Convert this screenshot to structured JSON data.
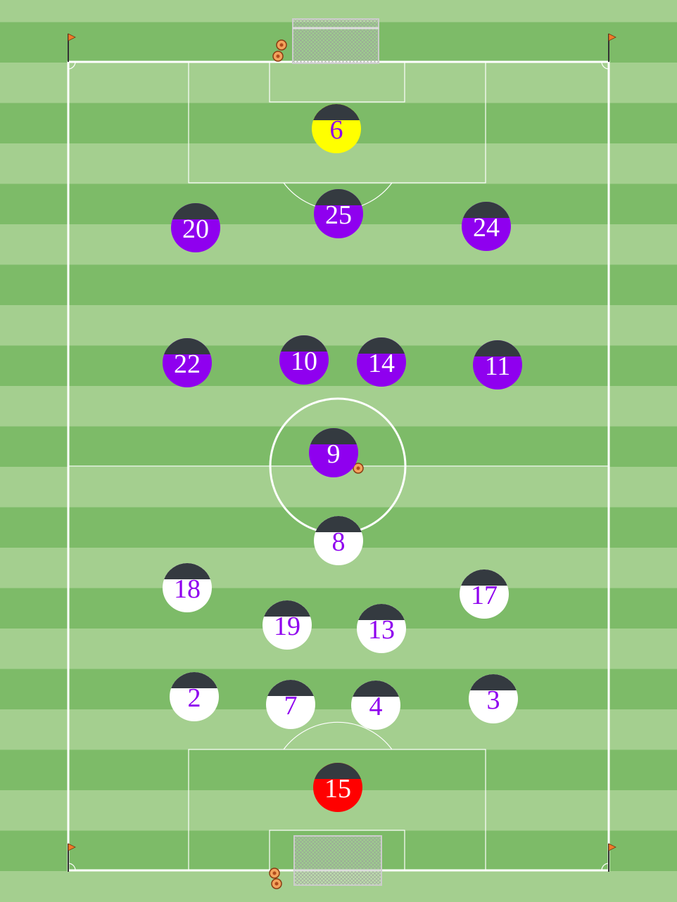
{
  "colors": {
    "grass_light": "#a4cf8f",
    "grass_dark": "#7dbb68",
    "line": "#ffffff",
    "cap": "#343a40",
    "home_kit": "#8f00ef",
    "home_number": "#ffffff",
    "home_goalkeeper_kit": "#ffff00",
    "home_goalkeeper_number": "#8f00ef",
    "away_kit": "#ffffff",
    "away_number": "#8f00ef",
    "away_goalkeeper_kit": "#ff0000",
    "away_goalkeeper_number": "#ffffff",
    "flag": "#f07a2a"
  },
  "teams": {
    "home": {
      "goalkeeper": "6",
      "players": [
        "25",
        "20",
        "24",
        "22",
        "10",
        "14",
        "11",
        "9"
      ]
    },
    "away": {
      "goalkeeper": "15",
      "players": [
        "8",
        "18",
        "17",
        "19",
        "13",
        "2",
        "7",
        "4",
        "3"
      ]
    }
  },
  "icons": {
    "ball": "soccer-ball-icon",
    "flag": "corner-flag-icon",
    "goal": "goal-net-icon"
  }
}
